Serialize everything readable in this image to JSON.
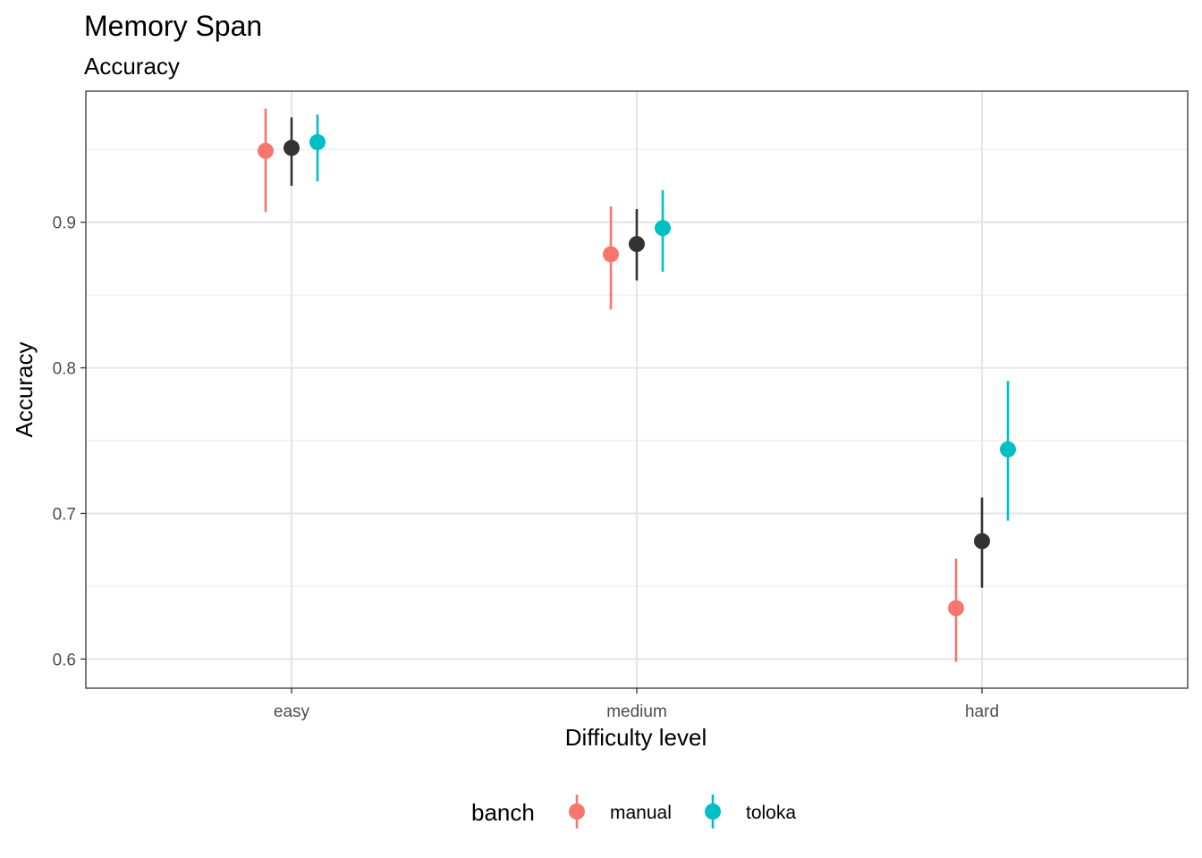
{
  "chart_data": {
    "type": "pointrange",
    "title": "Memory Span",
    "subtitle": "Accuracy",
    "xlabel": "Difficulty level",
    "ylabel": "Accuracy",
    "categories": [
      "easy",
      "medium",
      "hard"
    ],
    "ylim": [
      0.58,
      0.99
    ],
    "yticks": [
      0.6,
      0.7,
      0.8,
      0.9
    ],
    "ytick_labels": [
      "0.6",
      "0.7",
      "0.8",
      "0.9"
    ],
    "grid": true,
    "legend": {
      "title": "banch",
      "position": "bottom",
      "entries": [
        "manual",
        "toloka"
      ]
    },
    "series": [
      {
        "name": "manual",
        "color": "#F8766D",
        "offset": -1,
        "values": [
          0.949,
          0.878,
          0.635
        ],
        "lower": [
          0.907,
          0.84,
          0.598
        ],
        "upper": [
          0.978,
          0.911,
          0.669
        ]
      },
      {
        "name": "",
        "color": "#333333",
        "offset": 0,
        "values": [
          0.951,
          0.885,
          0.681
        ],
        "lower": [
          0.925,
          0.86,
          0.649
        ],
        "upper": [
          0.972,
          0.909,
          0.711
        ]
      },
      {
        "name": "toloka",
        "color": "#00BFC4",
        "offset": 1,
        "values": [
          0.955,
          0.896,
          0.744
        ],
        "lower": [
          0.928,
          0.866,
          0.695
        ],
        "upper": [
          0.974,
          0.922,
          0.791
        ]
      }
    ]
  }
}
